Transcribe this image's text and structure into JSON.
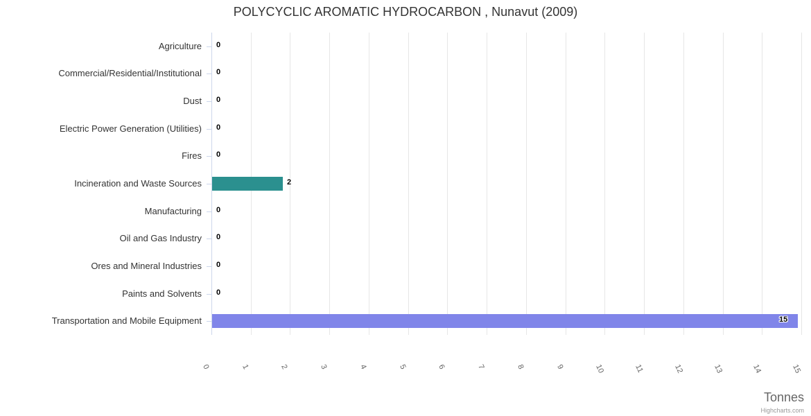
{
  "chart": {
    "title": "POLYCYCLIC AROMATIC HYDROCARBON , Nunavut (2009)",
    "axis_title": "Tonnes",
    "credits_label": "Highcharts.com"
  },
  "chart_data": {
    "type": "bar",
    "orientation": "horizontal",
    "title": "POLYCYCLIC AROMATIC HYDROCARBON , Nunavut (2009)",
    "categories": [
      "Agriculture",
      "Commercial/Residential/Institutional",
      "Dust",
      "Electric Power Generation (Utilities)",
      "Fires",
      "Incineration and Waste Sources",
      "Manufacturing",
      "Oil and Gas Industry",
      "Ores and Mineral Industries",
      "Paints and Solvents",
      "Transportation and Mobile Equipment"
    ],
    "values": [
      0,
      0,
      0,
      0,
      0,
      2,
      0,
      0,
      0,
      0,
      15
    ],
    "bar_lengths_tonnes": [
      0,
      0,
      0,
      0,
      0,
      1.8,
      0,
      0,
      0,
      0,
      14.9
    ],
    "bar_colors": [
      "",
      "",
      "",
      "",
      "",
      "#2b908f",
      "",
      "",
      "",
      "",
      "#8085e9"
    ],
    "xlabel": "Tonnes",
    "ylabel": "",
    "xlim": [
      0,
      15
    ],
    "x_ticks": [
      0,
      1,
      2,
      3,
      4,
      5,
      6,
      7,
      8,
      9,
      10,
      11,
      12,
      13,
      14,
      15
    ],
    "tick_label_rotation_deg": 65,
    "grid": true,
    "legend": "none",
    "colors": {
      "grid": "#e6e6e6",
      "axis_line": "#ccd6eb",
      "title_text": "#333333",
      "category_text": "#333333",
      "tick_text": "#666666",
      "axis_title_text": "#666666",
      "credits_text": "#999999",
      "data_label_text": "#000000"
    }
  }
}
